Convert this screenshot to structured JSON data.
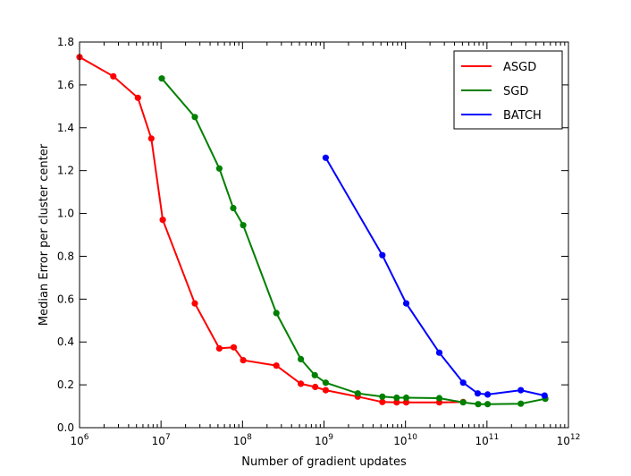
{
  "chart_data": {
    "type": "line",
    "title": "",
    "xlabel": "Number of gradient updates",
    "ylabel": "Median Error per cluster center",
    "xscale": "log",
    "xlim_exp": [
      6,
      12
    ],
    "ylim": [
      0.0,
      1.8
    ],
    "x_ticks": [
      {
        "base": "10",
        "exp": "6"
      },
      {
        "base": "10",
        "exp": "7"
      },
      {
        "base": "10",
        "exp": "8"
      },
      {
        "base": "10",
        "exp": "9"
      },
      {
        "base": "10",
        "exp": "10"
      },
      {
        "base": "10",
        "exp": "11"
      },
      {
        "base": "10",
        "exp": "12"
      }
    ],
    "y_ticks": [
      "0.0",
      "0.2",
      "0.4",
      "0.6",
      "0.8",
      "1.0",
      "1.2",
      "1.4",
      "1.6",
      "1.8"
    ],
    "legend_position": "top-right",
    "series": [
      {
        "name": "ASGD",
        "color": "#ff0000",
        "x": [
          1000000.0,
          2600000.0,
          5200000.0,
          7600000.0,
          10500000.0,
          26000000.0,
          52000000.0,
          78000000.0,
          102000000.0,
          260000000.0,
          520000000.0,
          780000000.0,
          1050000000.0,
          2600000000.0,
          5200000000.0,
          7800000000.0,
          10200000000.0,
          26000000000.0,
          51000000000.0
        ],
        "y": [
          1.73,
          1.64,
          1.54,
          1.35,
          0.97,
          0.58,
          0.37,
          0.375,
          0.315,
          0.29,
          0.205,
          0.19,
          0.175,
          0.145,
          0.12,
          0.118,
          0.118,
          0.118,
          0.12
        ]
      },
      {
        "name": "SGD",
        "color": "#008000",
        "x": [
          10200000.0,
          26000000.0,
          52000000.0,
          77000000.0,
          102000000.0,
          260000000.0,
          520000000.0,
          770000000.0,
          1050000000.0,
          2600000000.0,
          5200000000.0,
          7800000000.0,
          10200000000.0,
          26000000000.0,
          51000000000.0,
          78000000000.0,
          102000000000.0,
          260000000000.0,
          520000000000.0
        ],
        "y": [
          1.63,
          1.45,
          1.21,
          1.025,
          0.945,
          0.535,
          0.32,
          0.245,
          0.21,
          0.16,
          0.145,
          0.14,
          0.14,
          0.138,
          0.118,
          0.11,
          0.11,
          0.112,
          0.135
        ]
      },
      {
        "name": "BATCH",
        "color": "#0000ff",
        "x": [
          1050000000.0,
          5200000000.0,
          10200000000.0,
          26000000000.0,
          51000000000.0,
          77000000000.0,
          102000000000.0,
          260000000000.0,
          510000000000.0
        ],
        "y": [
          1.26,
          0.805,
          0.58,
          0.35,
          0.21,
          0.16,
          0.155,
          0.175,
          0.15
        ]
      }
    ]
  }
}
